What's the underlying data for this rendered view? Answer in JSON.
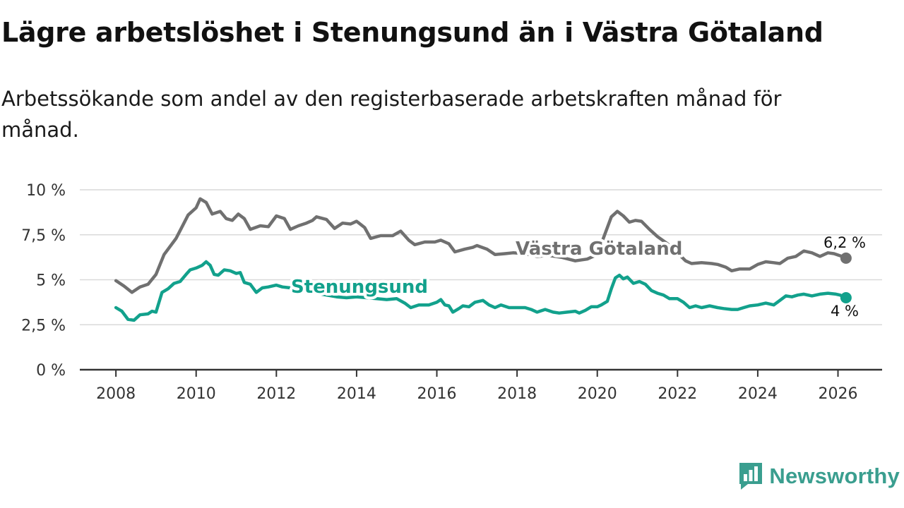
{
  "title": "Lägre arbetslöshet i Stenungsund än i Västra Götaland",
  "subtitle": "Arbetssökande som andel av den registerbaserade arbetskraften månad för månad.",
  "brand": {
    "name": "Newsworthy"
  },
  "colors": {
    "vg": "#707070",
    "sten": "#12a18c",
    "grid": "#d9d9d9",
    "axis": "#333333",
    "brand": "#3a9e8f"
  },
  "chart_data": {
    "type": "line",
    "title": "Lägre arbetslöshet i Stenungsund än i Västra Götaland",
    "subtitle": "Arbetssökande som andel av den registerbaserade arbetskraften månad för månad.",
    "xlabel": "",
    "ylabel": "",
    "xlim": [
      2007.1,
      2027.1
    ],
    "ylim": [
      0,
      10
    ],
    "grid": true,
    "legend": "inline labels",
    "x_ticks": [
      2008,
      2010,
      2012,
      2014,
      2016,
      2018,
      2020,
      2022,
      2024,
      2026
    ],
    "x_tick_labels": [
      "2008",
      "2010",
      "2012",
      "2014",
      "2016",
      "2018",
      "2020",
      "2022",
      "2024",
      "2026"
    ],
    "y_ticks": [
      0,
      2.5,
      5,
      7.5,
      10
    ],
    "y_tick_labels": [
      "0 %",
      "2,5 %",
      "5 %",
      "7,5 %",
      "10 %"
    ],
    "series": [
      {
        "name": "Västra Götaland",
        "end_label": "6,2 %",
        "points": [
          [
            2008.0,
            4.95
          ],
          [
            2008.2,
            4.65
          ],
          [
            2008.4,
            4.3
          ],
          [
            2008.6,
            4.6
          ],
          [
            2008.8,
            4.75
          ],
          [
            2009.0,
            5.3
          ],
          [
            2009.2,
            6.4
          ],
          [
            2009.5,
            7.3
          ],
          [
            2009.8,
            8.6
          ],
          [
            2010.0,
            9.0
          ],
          [
            2010.1,
            9.5
          ],
          [
            2010.25,
            9.3
          ],
          [
            2010.4,
            8.65
          ],
          [
            2010.6,
            8.8
          ],
          [
            2010.75,
            8.4
          ],
          [
            2010.9,
            8.3
          ],
          [
            2011.05,
            8.65
          ],
          [
            2011.2,
            8.4
          ],
          [
            2011.35,
            7.8
          ],
          [
            2011.6,
            8.0
          ],
          [
            2011.8,
            7.95
          ],
          [
            2012.0,
            8.55
          ],
          [
            2012.2,
            8.4
          ],
          [
            2012.35,
            7.8
          ],
          [
            2012.55,
            8.0
          ],
          [
            2012.75,
            8.15
          ],
          [
            2012.9,
            8.3
          ],
          [
            2013.0,
            8.5
          ],
          [
            2013.25,
            8.35
          ],
          [
            2013.45,
            7.85
          ],
          [
            2013.65,
            8.15
          ],
          [
            2013.85,
            8.1
          ],
          [
            2014.0,
            8.25
          ],
          [
            2014.2,
            7.9
          ],
          [
            2014.35,
            7.3
          ],
          [
            2014.6,
            7.45
          ],
          [
            2014.9,
            7.45
          ],
          [
            2015.1,
            7.7
          ],
          [
            2015.3,
            7.2
          ],
          [
            2015.45,
            6.95
          ],
          [
            2015.7,
            7.1
          ],
          [
            2015.95,
            7.1
          ],
          [
            2016.1,
            7.2
          ],
          [
            2016.3,
            7.0
          ],
          [
            2016.45,
            6.55
          ],
          [
            2016.7,
            6.7
          ],
          [
            2016.9,
            6.8
          ],
          [
            2017.0,
            6.9
          ],
          [
            2017.25,
            6.7
          ],
          [
            2017.45,
            6.4
          ],
          [
            2017.7,
            6.45
          ],
          [
            2017.9,
            6.5
          ],
          [
            2018.2,
            6.45
          ],
          [
            2018.5,
            6.3
          ],
          [
            2018.8,
            6.35
          ],
          [
            2019.1,
            6.25
          ],
          [
            2019.45,
            6.05
          ],
          [
            2019.75,
            6.15
          ],
          [
            2020.0,
            6.4
          ],
          [
            2020.2,
            7.6
          ],
          [
            2020.35,
            8.5
          ],
          [
            2020.5,
            8.8
          ],
          [
            2020.65,
            8.55
          ],
          [
            2020.8,
            8.2
          ],
          [
            2020.95,
            8.3
          ],
          [
            2021.1,
            8.25
          ],
          [
            2021.3,
            7.8
          ],
          [
            2021.5,
            7.4
          ],
          [
            2021.75,
            7.0
          ],
          [
            2022.0,
            6.5
          ],
          [
            2022.2,
            6.05
          ],
          [
            2022.35,
            5.9
          ],
          [
            2022.6,
            5.95
          ],
          [
            2022.85,
            5.9
          ],
          [
            2023.0,
            5.85
          ],
          [
            2023.2,
            5.7
          ],
          [
            2023.35,
            5.5
          ],
          [
            2023.55,
            5.6
          ],
          [
            2023.8,
            5.6
          ],
          [
            2024.0,
            5.85
          ],
          [
            2024.2,
            6.0
          ],
          [
            2024.4,
            5.95
          ],
          [
            2024.55,
            5.9
          ],
          [
            2024.75,
            6.2
          ],
          [
            2024.95,
            6.3
          ],
          [
            2025.15,
            6.6
          ],
          [
            2025.35,
            6.5
          ],
          [
            2025.55,
            6.3
          ],
          [
            2025.75,
            6.5
          ],
          [
            2025.9,
            6.45
          ],
          [
            2026.1,
            6.3
          ],
          [
            2026.2,
            6.2
          ]
        ]
      },
      {
        "name": "Stenungsund",
        "end_label": "4 %",
        "points": [
          [
            2008.0,
            3.45
          ],
          [
            2008.15,
            3.25
          ],
          [
            2008.3,
            2.8
          ],
          [
            2008.45,
            2.75
          ],
          [
            2008.6,
            3.05
          ],
          [
            2008.8,
            3.1
          ],
          [
            2008.9,
            3.25
          ],
          [
            2009.0,
            3.2
          ],
          [
            2009.15,
            4.3
          ],
          [
            2009.3,
            4.5
          ],
          [
            2009.45,
            4.8
          ],
          [
            2009.6,
            4.9
          ],
          [
            2009.75,
            5.3
          ],
          [
            2009.85,
            5.55
          ],
          [
            2010.0,
            5.65
          ],
          [
            2010.15,
            5.8
          ],
          [
            2010.25,
            6.0
          ],
          [
            2010.35,
            5.8
          ],
          [
            2010.45,
            5.3
          ],
          [
            2010.55,
            5.25
          ],
          [
            2010.7,
            5.55
          ],
          [
            2010.85,
            5.5
          ],
          [
            2011.0,
            5.35
          ],
          [
            2011.1,
            5.4
          ],
          [
            2011.2,
            4.85
          ],
          [
            2011.35,
            4.75
          ],
          [
            2011.5,
            4.3
          ],
          [
            2011.65,
            4.55
          ],
          [
            2011.8,
            4.6
          ],
          [
            2012.0,
            4.7
          ],
          [
            2012.15,
            4.6
          ],
          [
            2012.35,
            4.55
          ],
          [
            2012.6,
            4.5
          ],
          [
            2012.85,
            4.35
          ],
          [
            2013.0,
            4.25
          ],
          [
            2013.25,
            4.15
          ],
          [
            2013.5,
            4.05
          ],
          [
            2013.75,
            4.0
          ],
          [
            2014.0,
            4.05
          ],
          [
            2014.25,
            4.0
          ],
          [
            2014.5,
            3.95
          ],
          [
            2014.75,
            3.9
          ],
          [
            2015.0,
            3.95
          ],
          [
            2015.2,
            3.7
          ],
          [
            2015.35,
            3.45
          ],
          [
            2015.55,
            3.6
          ],
          [
            2015.8,
            3.6
          ],
          [
            2016.0,
            3.75
          ],
          [
            2016.1,
            3.9
          ],
          [
            2016.2,
            3.6
          ],
          [
            2016.3,
            3.55
          ],
          [
            2016.4,
            3.2
          ],
          [
            2016.55,
            3.4
          ],
          [
            2016.65,
            3.55
          ],
          [
            2016.8,
            3.5
          ],
          [
            2016.95,
            3.75
          ],
          [
            2017.15,
            3.85
          ],
          [
            2017.3,
            3.6
          ],
          [
            2017.45,
            3.45
          ],
          [
            2017.6,
            3.6
          ],
          [
            2017.8,
            3.45
          ],
          [
            2018.0,
            3.45
          ],
          [
            2018.2,
            3.45
          ],
          [
            2018.35,
            3.35
          ],
          [
            2018.5,
            3.2
          ],
          [
            2018.7,
            3.35
          ],
          [
            2018.9,
            3.2
          ],
          [
            2019.05,
            3.15
          ],
          [
            2019.25,
            3.2
          ],
          [
            2019.45,
            3.25
          ],
          [
            2019.55,
            3.15
          ],
          [
            2019.7,
            3.3
          ],
          [
            2019.85,
            3.5
          ],
          [
            2020.0,
            3.5
          ],
          [
            2020.1,
            3.6
          ],
          [
            2020.25,
            3.8
          ],
          [
            2020.35,
            4.5
          ],
          [
            2020.45,
            5.1
          ],
          [
            2020.55,
            5.25
          ],
          [
            2020.65,
            5.05
          ],
          [
            2020.75,
            5.15
          ],
          [
            2020.9,
            4.8
          ],
          [
            2021.05,
            4.9
          ],
          [
            2021.2,
            4.75
          ],
          [
            2021.35,
            4.4
          ],
          [
            2021.5,
            4.25
          ],
          [
            2021.65,
            4.15
          ],
          [
            2021.8,
            3.95
          ],
          [
            2022.0,
            3.95
          ],
          [
            2022.15,
            3.75
          ],
          [
            2022.3,
            3.45
          ],
          [
            2022.45,
            3.55
          ],
          [
            2022.6,
            3.45
          ],
          [
            2022.8,
            3.55
          ],
          [
            2023.0,
            3.45
          ],
          [
            2023.15,
            3.4
          ],
          [
            2023.35,
            3.35
          ],
          [
            2023.5,
            3.35
          ],
          [
            2023.65,
            3.45
          ],
          [
            2023.8,
            3.55
          ],
          [
            2024.0,
            3.6
          ],
          [
            2024.2,
            3.7
          ],
          [
            2024.4,
            3.6
          ],
          [
            2024.55,
            3.85
          ],
          [
            2024.7,
            4.1
          ],
          [
            2024.85,
            4.05
          ],
          [
            2025.0,
            4.15
          ],
          [
            2025.15,
            4.2
          ],
          [
            2025.35,
            4.1
          ],
          [
            2025.55,
            4.2
          ],
          [
            2025.75,
            4.25
          ],
          [
            2025.95,
            4.2
          ],
          [
            2026.05,
            4.15
          ],
          [
            2026.15,
            4.05
          ],
          [
            2026.2,
            4.0
          ]
        ]
      }
    ]
  }
}
